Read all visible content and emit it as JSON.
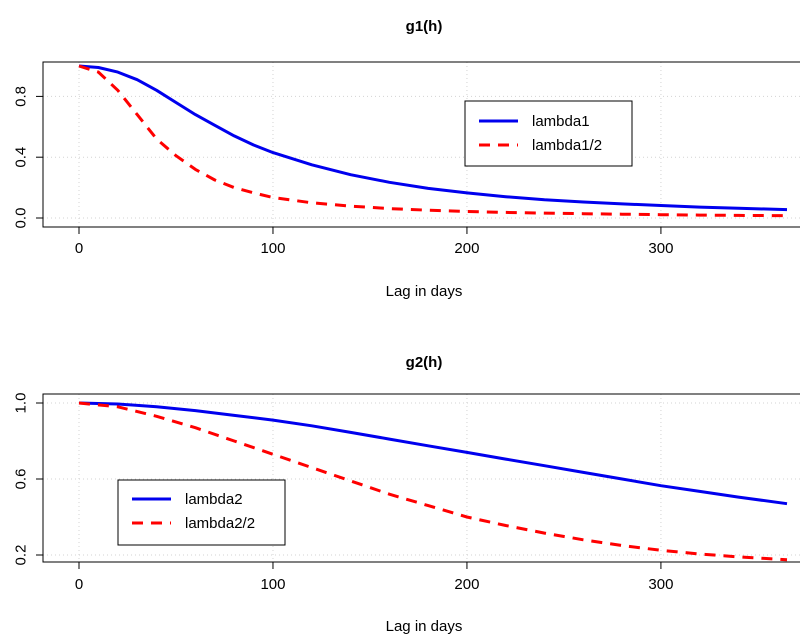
{
  "chart_data": [
    {
      "type": "line",
      "title": "g1(h)",
      "xlabel": "Lag in days",
      "ylabel": "",
      "xlim": [
        0,
        365
      ],
      "ylim": [
        0,
        1
      ],
      "xticks": [
        0,
        100,
        200,
        300
      ],
      "yticks": [
        0.0,
        0.4,
        0.8
      ],
      "ytick_labels": [
        "0.0",
        "0.4",
        "0.8"
      ],
      "grid": true,
      "legend_position": "upper-right",
      "x": [
        0,
        10,
        20,
        30,
        40,
        50,
        60,
        70,
        80,
        90,
        100,
        120,
        140,
        160,
        180,
        200,
        220,
        240,
        260,
        280,
        300,
        320,
        340,
        365
      ],
      "series": [
        {
          "name": "lambda1",
          "color": "#0000ee",
          "dash": "solid",
          "values": [
            1.0,
            0.99,
            0.96,
            0.91,
            0.84,
            0.76,
            0.68,
            0.61,
            0.54,
            0.48,
            0.43,
            0.35,
            0.285,
            0.235,
            0.195,
            0.165,
            0.14,
            0.12,
            0.105,
            0.093,
            0.082,
            0.072,
            0.064,
            0.055
          ]
        },
        {
          "name": "lambda1/2",
          "color": "#ff0000",
          "dash": "dashed",
          "values": [
            1.0,
            0.96,
            0.84,
            0.68,
            0.52,
            0.41,
            0.32,
            0.25,
            0.2,
            0.165,
            0.135,
            0.1,
            0.078,
            0.062,
            0.051,
            0.043,
            0.037,
            0.032,
            0.028,
            0.025,
            0.022,
            0.019,
            0.017,
            0.015
          ]
        }
      ]
    },
    {
      "type": "line",
      "title": "g2(h)",
      "xlabel": "Lag in days",
      "ylabel": "",
      "xlim": [
        0,
        365
      ],
      "ylim": [
        0.2,
        1.0
      ],
      "xticks": [
        0,
        100,
        200,
        300
      ],
      "yticks": [
        0.2,
        0.6,
        1.0
      ],
      "ytick_labels": [
        "0.2",
        "0.6",
        "1.0"
      ],
      "grid": true,
      "legend_position": "lower-left",
      "x": [
        0,
        20,
        40,
        60,
        80,
        100,
        120,
        140,
        160,
        180,
        200,
        220,
        240,
        260,
        280,
        300,
        320,
        340,
        365
      ],
      "series": [
        {
          "name": "lambda2",
          "color": "#0000ee",
          "dash": "solid",
          "values": [
            1.0,
            0.995,
            0.98,
            0.96,
            0.935,
            0.91,
            0.88,
            0.845,
            0.81,
            0.775,
            0.74,
            0.705,
            0.67,
            0.635,
            0.6,
            0.565,
            0.535,
            0.505,
            0.47
          ]
        },
        {
          "name": "lambda2/2",
          "color": "#ff0000",
          "dash": "dashed",
          "values": [
            1.0,
            0.98,
            0.93,
            0.87,
            0.8,
            0.73,
            0.66,
            0.59,
            0.52,
            0.46,
            0.4,
            0.355,
            0.315,
            0.28,
            0.25,
            0.225,
            0.205,
            0.19,
            0.175
          ]
        }
      ]
    }
  ]
}
